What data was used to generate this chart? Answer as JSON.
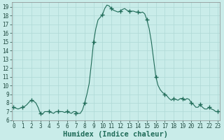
{
  "x": [
    0,
    0.25,
    0.5,
    0.75,
    1.0,
    1.25,
    1.5,
    1.75,
    2.0,
    2.25,
    2.5,
    2.75,
    3.0,
    3.25,
    3.5,
    3.75,
    4.0,
    4.25,
    4.5,
    4.75,
    5.0,
    5.25,
    5.5,
    5.75,
    6.0,
    6.25,
    6.5,
    6.75,
    7.0,
    7.25,
    7.5,
    7.75,
    8.0,
    8.25,
    8.5,
    8.75,
    9.0,
    9.25,
    9.5,
    9.75,
    10.0,
    10.25,
    10.5,
    10.75,
    11.0,
    11.25,
    11.5,
    11.75,
    12.0,
    12.25,
    12.5,
    12.75,
    13.0,
    13.25,
    13.5,
    13.75,
    14.0,
    14.25,
    14.5,
    14.75,
    15.0,
    15.25,
    15.5,
    15.75,
    16.0,
    16.25,
    16.5,
    16.75,
    17.0,
    17.25,
    17.5,
    17.75,
    18.0,
    18.25,
    18.5,
    18.75,
    19.0,
    19.25,
    19.5,
    19.75,
    20.0,
    20.25,
    20.5,
    20.75,
    21.0,
    21.25,
    21.5,
    21.75,
    22.0,
    22.25,
    22.5,
    22.75,
    23.0
  ],
  "y": [
    7.5,
    7.4,
    7.3,
    7.4,
    7.5,
    7.6,
    7.8,
    8.1,
    8.3,
    8.2,
    8.0,
    7.5,
    6.8,
    6.7,
    7.0,
    7.0,
    7.0,
    6.9,
    6.8,
    7.0,
    7.0,
    7.0,
    7.0,
    6.9,
    7.0,
    6.9,
    6.8,
    7.0,
    7.0,
    6.8,
    6.8,
    7.2,
    8.0,
    9.0,
    10.2,
    12.5,
    15.0,
    16.5,
    17.5,
    17.8,
    18.1,
    18.8,
    19.2,
    19.1,
    18.8,
    18.6,
    18.5,
    18.4,
    18.5,
    18.7,
    18.8,
    18.6,
    18.5,
    18.5,
    18.5,
    18.4,
    18.4,
    18.3,
    18.4,
    18.2,
    17.5,
    16.5,
    15.0,
    13.0,
    11.0,
    10.0,
    9.5,
    9.2,
    9.0,
    8.8,
    8.5,
    8.3,
    8.5,
    8.4,
    8.3,
    8.5,
    8.5,
    8.3,
    8.5,
    8.4,
    8.0,
    7.8,
    7.5,
    7.5,
    7.8,
    7.5,
    7.3,
    7.3,
    7.5,
    7.3,
    7.2,
    7.0,
    7.0
  ],
  "marker_x": [
    0,
    1,
    2,
    3,
    4,
    5,
    6,
    7,
    8,
    9,
    10,
    11,
    12,
    13,
    14,
    15,
    16,
    17,
    18,
    19,
    20,
    21,
    22,
    23
  ],
  "marker_y": [
    7.5,
    7.5,
    8.3,
    6.8,
    7.0,
    7.0,
    7.0,
    6.8,
    8.0,
    15.0,
    18.1,
    18.8,
    18.5,
    18.5,
    18.4,
    17.5,
    11.0,
    9.0,
    8.5,
    8.5,
    8.0,
    7.8,
    7.5,
    7.0
  ],
  "bg_color": "#c9ece9",
  "grid_color": "#afd8d5",
  "line_color": "#1f6b58",
  "marker_color": "#1f6b58",
  "xlabel": "Humidex (Indice chaleur)",
  "ylim": [
    6,
    19.5
  ],
  "xlim": [
    -0.2,
    23.2
  ],
  "yticks": [
    6,
    7,
    8,
    9,
    10,
    11,
    12,
    13,
    14,
    15,
    16,
    17,
    18,
    19
  ],
  "xticks": [
    0,
    1,
    2,
    3,
    4,
    5,
    6,
    7,
    8,
    9,
    10,
    11,
    12,
    13,
    14,
    15,
    16,
    17,
    18,
    19,
    20,
    21,
    22,
    23
  ],
  "tick_label_fontsize": 5.5,
  "xlabel_fontsize": 7.5,
  "marker_size": 4,
  "line_width": 0.8
}
